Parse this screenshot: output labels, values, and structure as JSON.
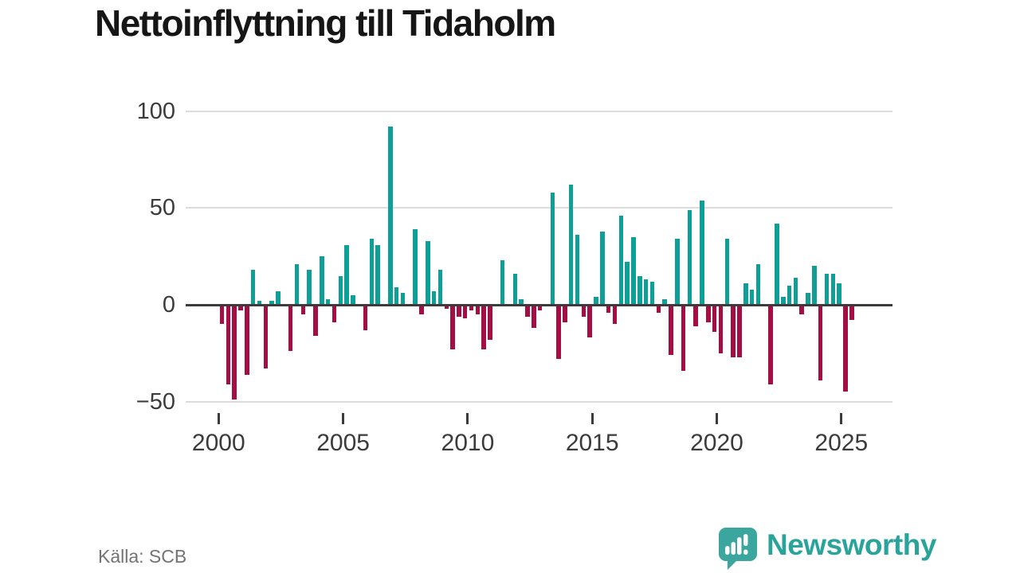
{
  "title": "Nettoinflyttning till Tidaholm",
  "footer": {
    "source_label": "Källa: SCB"
  },
  "brand": {
    "name": "Newsworthy",
    "icon": "newsworthy-speech-bubble-bar-chart-icon"
  },
  "colors": {
    "positive_bar": "#0e9f97",
    "negative_bar": "#a50d45",
    "gridline": "#dcdcdc",
    "zero_line": "#3c3c3c",
    "axis_text": "#3b3b3b",
    "title_text": "#161616",
    "source_text": "#737373",
    "brand_teal": "#2aa49b",
    "background": "#ffffff"
  },
  "chart_data": {
    "type": "bar",
    "title": "Nettoinflyttning till Tidaholm",
    "source": "Källa: SCB",
    "frequency": "quarterly",
    "legend": "none",
    "grid": "horizontal",
    "ylim": [
      -50,
      100
    ],
    "y_ticks": [
      100,
      50,
      0,
      -50
    ],
    "y_tick_labels": [
      "100",
      "50",
      "0",
      "−50"
    ],
    "x_ticks": [
      2000,
      2005,
      2010,
      2015,
      2020,
      2025
    ],
    "x_tick_labels": [
      "2000",
      "2005",
      "2010",
      "2015",
      "2020",
      "2025"
    ],
    "x": [
      "2000-Q1",
      "2000-Q2",
      "2000-Q3",
      "2000-Q4",
      "2001-Q1",
      "2001-Q2",
      "2001-Q3",
      "2001-Q4",
      "2002-Q1",
      "2002-Q2",
      "2002-Q3",
      "2002-Q4",
      "2003-Q1",
      "2003-Q2",
      "2003-Q3",
      "2003-Q4",
      "2004-Q1",
      "2004-Q2",
      "2004-Q3",
      "2004-Q4",
      "2005-Q1",
      "2005-Q2",
      "2005-Q3",
      "2005-Q4",
      "2006-Q1",
      "2006-Q2",
      "2006-Q3",
      "2006-Q4",
      "2007-Q1",
      "2007-Q2",
      "2007-Q3",
      "2007-Q4",
      "2008-Q1",
      "2008-Q2",
      "2008-Q3",
      "2008-Q4",
      "2009-Q1",
      "2009-Q2",
      "2009-Q3",
      "2009-Q4",
      "2010-Q1",
      "2010-Q2",
      "2010-Q3",
      "2010-Q4",
      "2011-Q1",
      "2011-Q2",
      "2011-Q3",
      "2011-Q4",
      "2012-Q1",
      "2012-Q2",
      "2012-Q3",
      "2012-Q4",
      "2013-Q1",
      "2013-Q2",
      "2013-Q3",
      "2013-Q4",
      "2014-Q1",
      "2014-Q2",
      "2014-Q3",
      "2014-Q4",
      "2015-Q1",
      "2015-Q2",
      "2015-Q3",
      "2015-Q4",
      "2016-Q1",
      "2016-Q2",
      "2016-Q3",
      "2016-Q4",
      "2017-Q1",
      "2017-Q2",
      "2017-Q3",
      "2017-Q4",
      "2018-Q1",
      "2018-Q2",
      "2018-Q3",
      "2018-Q4",
      "2019-Q1",
      "2019-Q2",
      "2019-Q3",
      "2019-Q4",
      "2020-Q1",
      "2020-Q2",
      "2020-Q3",
      "2020-Q4",
      "2021-Q1",
      "2021-Q2",
      "2021-Q3",
      "2021-Q4",
      "2022-Q1",
      "2022-Q2",
      "2022-Q3",
      "2022-Q4",
      "2023-Q1",
      "2023-Q2",
      "2023-Q3",
      "2023-Q4",
      "2024-Q1",
      "2024-Q2",
      "2024-Q3",
      "2024-Q4",
      "2025-Q1",
      "2025-Q2"
    ],
    "values": [
      -10,
      -41,
      -49,
      -3,
      -36,
      18,
      2,
      -33,
      2,
      7,
      0,
      -24,
      21,
      -5,
      18,
      -16,
      25,
      3,
      -9,
      15,
      31,
      5,
      -1,
      -13,
      34,
      31,
      0,
      92,
      9,
      6,
      0,
      39,
      -5,
      33,
      7,
      18,
      -2,
      -23,
      -6,
      -7,
      -3,
      -5,
      -23,
      -18,
      0,
      23,
      0,
      16,
      3,
      -6,
      -12,
      -3,
      0,
      58,
      -28,
      -9,
      62,
      36,
      -6,
      -17,
      4,
      38,
      -4,
      -10,
      46,
      22,
      35,
      15,
      13,
      12,
      -4,
      3,
      -26,
      34,
      -34,
      49,
      -11,
      54,
      -9,
      -14,
      -25,
      34,
      -27,
      -27,
      11,
      8,
      21,
      0,
      -41,
      42,
      4,
      10,
      14,
      -5,
      6,
      20,
      -39,
      16,
      16,
      11,
      -45,
      -8
    ]
  }
}
